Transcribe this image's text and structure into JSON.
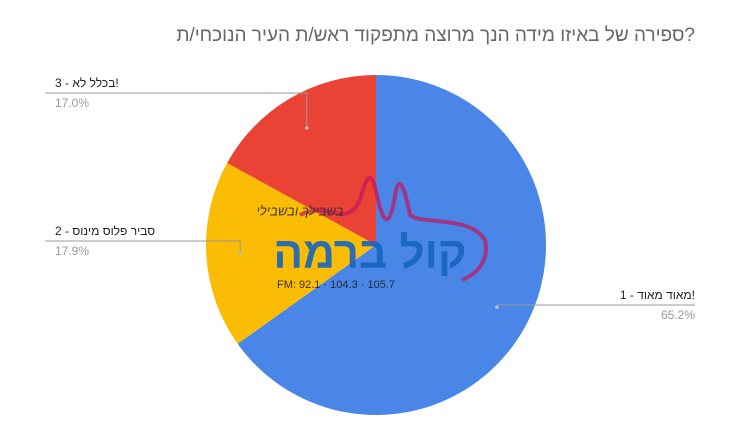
{
  "chart_data": {
    "type": "pie",
    "title": "ספירה של באיזו מידה הנך מרוצה מתפקוד ראש/ת העיר הנוכחי/ת?",
    "categories": [
      "1 - מאוד מאוד!",
      "2 - סביר פלוס מינוס",
      "3 - בכלל לא!"
    ],
    "values": [
      65.2,
      17.9,
      17.0
    ],
    "value_labels": [
      "65.2%",
      "17.9%",
      "17.0%"
    ],
    "colors": [
      "#4a86e8",
      "#fbbc04",
      "#ea4335"
    ]
  },
  "watermark": {
    "name": "קול ברמה",
    "slogan": "בשבילך ובשבילי",
    "frequencies": "FM: 92.1 · 104.3 · 105.7"
  }
}
